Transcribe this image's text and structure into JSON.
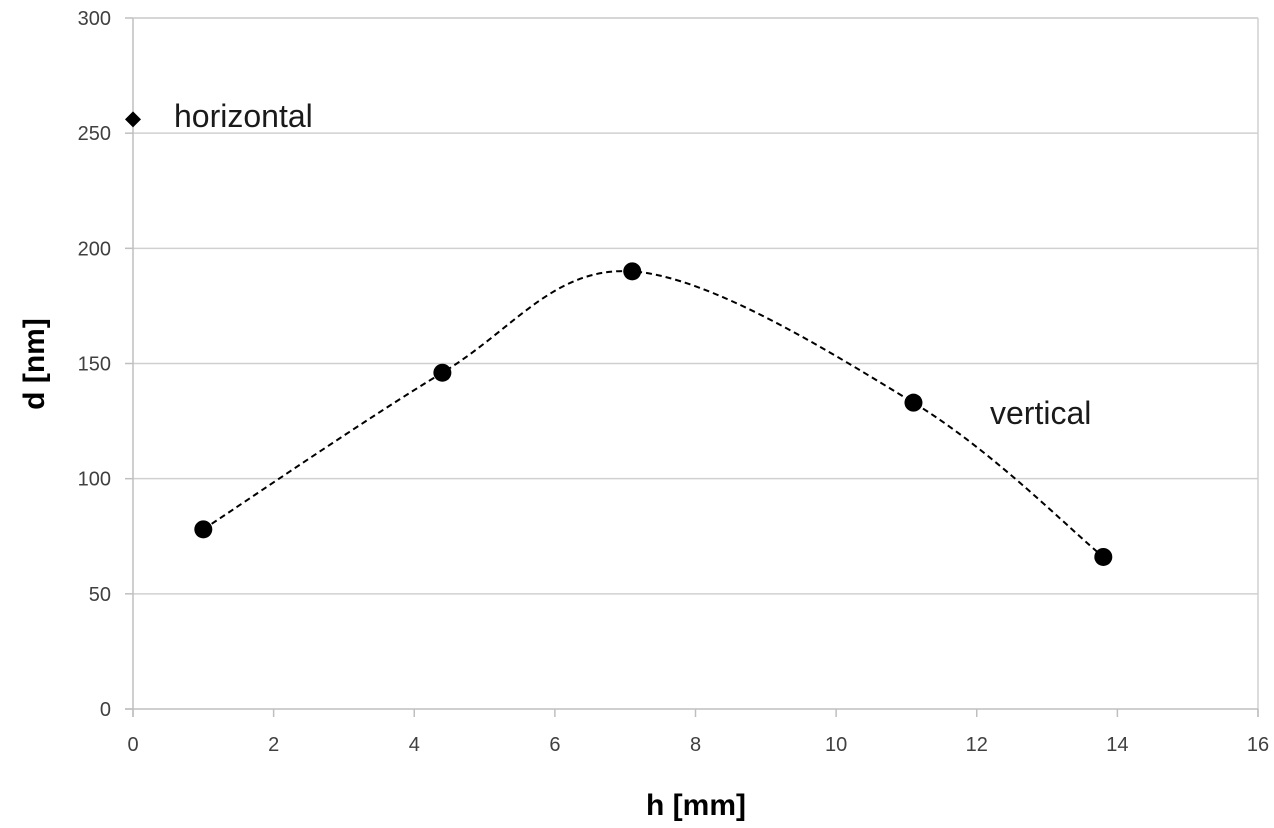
{
  "chart_data": {
    "type": "scatter",
    "xlabel": "h [mm]",
    "ylabel": "d [nm]",
    "xlim": [
      0,
      16
    ],
    "ylim": [
      0,
      300
    ],
    "xticks": [
      "0",
      "2",
      "4",
      "6",
      "8",
      "10",
      "12",
      "14",
      "16"
    ],
    "yticks": [
      "0",
      "50",
      "100",
      "150",
      "200",
      "250",
      "300"
    ],
    "grid": "horizontal",
    "series": [
      {
        "name": "vertical",
        "marker": "circle",
        "x": [
          1.0,
          4.4,
          7.1,
          11.1,
          13.8
        ],
        "y": [
          78,
          146,
          190,
          133,
          66
        ],
        "trendline": "smooth dashed"
      },
      {
        "name": "horizontal",
        "marker": "diamond",
        "x": [
          0
        ],
        "y": [
          256
        ]
      }
    ],
    "annotations": [
      "horizontal",
      "vertical"
    ]
  },
  "colors": {
    "marker": "#000000",
    "grid": "#d0d0d0",
    "axis": "#bfbfbf"
  }
}
